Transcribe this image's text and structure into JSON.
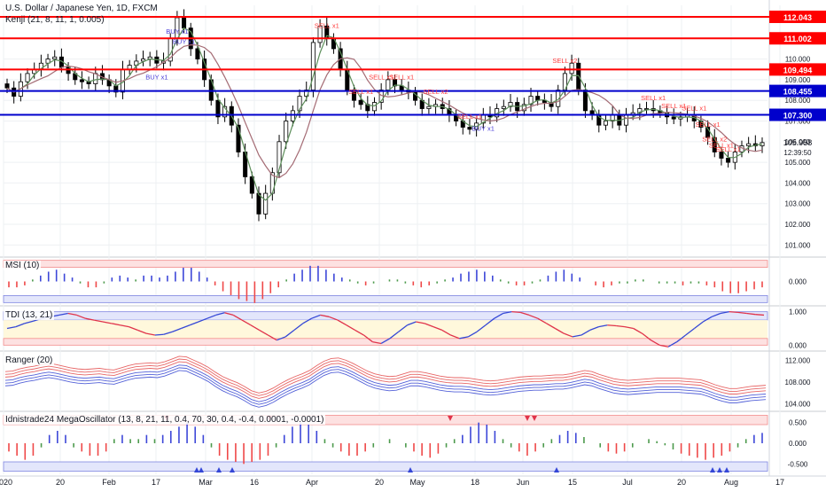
{
  "header": {
    "title": "U.S. Dollar / Japanese Yen, 1D, FXCM",
    "indicator": "Kenji (21, 8, 11, 1, 0.005)"
  },
  "colors": {
    "up_candle": "#ffffff",
    "down_candle": "#000000",
    "resistance": "#ff0000",
    "support": "#0000cc",
    "buy": "#4b3fd9",
    "sell": "#ff3d3d",
    "ma_fast": "#5d8f5a",
    "ma_slow": "#a46b74",
    "grid": "#eef0f3"
  },
  "chart_data": [
    {
      "type": "candlestick",
      "title": "U.S. Dollar / Japanese Yen, 1D, FXCM",
      "ylim": [
        100.5,
        112.6
      ],
      "y_ticks": [
        "101.000",
        "102.000",
        "103.000",
        "104.000",
        "105.000",
        "106.000",
        "107.000",
        "108.000",
        "109.000",
        "110.000",
        "111.000",
        "112.000"
      ],
      "x_ticks": [
        "2020",
        "20",
        "Feb",
        "17",
        "Mar",
        "16",
        "Apr",
        "20",
        "May",
        "18",
        "Jun",
        "15",
        "Jul",
        "20",
        "Aug",
        "17"
      ],
      "last_price": "105.958",
      "countdown": "12:39:50",
      "levels": [
        {
          "value": 112.043,
          "label": "112.043",
          "color": "#ff0000"
        },
        {
          "value": 111.002,
          "label": "111.002",
          "color": "#ff0000"
        },
        {
          "value": 109.494,
          "label": "109.494",
          "color": "#ff0000"
        },
        {
          "value": 108.455,
          "label": "108.455",
          "color": "#0000cc"
        },
        {
          "value": 107.3,
          "label": "107.300",
          "color": "#0000cc"
        }
      ],
      "series": [
        {
          "name": "close",
          "values": [
            108.6,
            108.2,
            108.9,
            109.3,
            109.5,
            109.8,
            110.0,
            110.1,
            109.6,
            109.3,
            109.0,
            108.9,
            108.8,
            109.3,
            109.0,
            108.7,
            108.4,
            109.5,
            109.7,
            109.9,
            110.0,
            110.1,
            109.8,
            109.9,
            111.0,
            112.0,
            111.5,
            110.5,
            110.0,
            109.0,
            108.0,
            107.2,
            107.7,
            106.8,
            105.5,
            104.3,
            103.5,
            102.5,
            103.5,
            104.5,
            106.0,
            107.0,
            107.5,
            108.2,
            108.5,
            110.8,
            111.6,
            111.0,
            110.5,
            109.5,
            108.5,
            108.0,
            107.8,
            107.5,
            107.9,
            108.5,
            109.0,
            108.7,
            108.5,
            108.4,
            108.0,
            107.6,
            107.7,
            107.8,
            107.6,
            107.3,
            107.0,
            106.7,
            106.6,
            106.9,
            107.3,
            107.2,
            107.6,
            107.7,
            107.9,
            107.5,
            107.8,
            108.2,
            108.0,
            107.9,
            107.7,
            108.5,
            109.3,
            109.8,
            108.5,
            107.5,
            107.3,
            106.8,
            107.0,
            107.3,
            106.8,
            107.3,
            107.4,
            107.6,
            107.6,
            107.5,
            107.4,
            107.2,
            107.1,
            107.2,
            107.3,
            107.0,
            106.7,
            106.2,
            105.5,
            105.2,
            105.0,
            105.5,
            105.8,
            105.9,
            105.8,
            105.958
          ]
        }
      ],
      "annotations": [
        "BUY x1",
        "BUY x1",
        "BUY x1",
        "SELL x1",
        "SELL x1",
        "SELL x1",
        "SELL x1",
        "SELL x2",
        "SELL x1",
        "SELL x2",
        "SELL x1",
        "SELL x1",
        "SELL x1",
        "BUY x1",
        "SELL x1",
        "SELL x1",
        "SELL x2",
        "SELL x1"
      ]
    },
    {
      "type": "bar",
      "title": "MSI (10)",
      "ylim": [
        -1.2,
        1.2
      ],
      "y_ticks": [
        "0.000"
      ],
      "values": [
        -0.3,
        -0.3,
        -0.2,
        0.1,
        0.3,
        0.5,
        0.6,
        0.4,
        0.2,
        -0.1,
        -0.3,
        -0.3,
        -0.1,
        0.2,
        0.3,
        0.2,
        0.1,
        0.3,
        0.3,
        0.2,
        0.3,
        0.5,
        0.7,
        0.7,
        0.5,
        0.2,
        -0.2,
        -0.5,
        -0.7,
        -0.9,
        -1.0,
        -1.1,
        -0.9,
        -0.6,
        -0.3,
        0.1,
        0.4,
        0.6,
        0.8,
        0.8,
        0.6,
        0.4,
        0.2,
        0.1,
        -0.1,
        -0.2,
        -0.1,
        0.0,
        0.1,
        0.1,
        -0.1,
        -0.2,
        -0.3,
        -0.2,
        -0.1,
        0.1,
        0.2,
        0.4,
        0.5,
        0.6,
        0.5,
        0.3,
        0.1,
        -0.1,
        -0.2,
        -0.2,
        -0.1,
        0.1,
        0.3,
        0.5,
        0.6,
        0.4,
        0.2,
        0.0,
        -0.2,
        -0.3,
        -0.2,
        -0.1,
        -0.1,
        0.1,
        0.1,
        0.0,
        -0.1,
        -0.1,
        -0.1,
        -0.2,
        -0.1,
        -0.1,
        -0.2,
        -0.3,
        -0.5,
        -0.6,
        -0.6,
        -0.5,
        -0.4,
        -0.3
      ]
    },
    {
      "type": "line",
      "title": "TDI (13, 21)",
      "ylim": [
        -0.15,
        1.15
      ],
      "y_ticks": [
        "1.000",
        "0.000"
      ],
      "values": [
        0.5,
        0.55,
        0.65,
        0.72,
        0.8,
        0.85,
        0.9,
        0.95,
        0.9,
        0.8,
        0.75,
        0.7,
        0.65,
        0.6,
        0.55,
        0.45,
        0.35,
        0.3,
        0.32,
        0.4,
        0.5,
        0.6,
        0.7,
        0.8,
        0.9,
        0.97,
        0.9,
        0.75,
        0.6,
        0.45,
        0.3,
        0.15,
        0.25,
        0.45,
        0.65,
        0.8,
        0.9,
        0.85,
        0.75,
        0.6,
        0.45,
        0.3,
        0.1,
        0.05,
        0.2,
        0.4,
        0.6,
        0.7,
        0.65,
        0.55,
        0.45,
        0.3,
        0.2,
        0.25,
        0.4,
        0.6,
        0.8,
        0.95,
        1.0,
        0.98,
        0.9,
        0.8,
        0.65,
        0.5,
        0.35,
        0.25,
        0.3,
        0.45,
        0.55,
        0.6,
        0.58,
        0.55,
        0.5,
        0.35,
        0.15,
        0.0,
        -0.05,
        0.1,
        0.3,
        0.5,
        0.7,
        0.85,
        0.95,
        1.0,
        0.98,
        0.95,
        0.92,
        0.9
      ]
    },
    {
      "type": "line",
      "title": "Ranger (20)",
      "ylim": [
        102.8,
        113.5
      ],
      "y_ticks": [
        "112.000",
        "108.000",
        "104.000"
      ],
      "values": [
        108.5,
        108.6,
        109.0,
        109.3,
        109.5,
        109.8,
        110.0,
        109.8,
        109.5,
        109.2,
        109.0,
        108.9,
        109.0,
        109.1,
        108.9,
        108.8,
        109.2,
        109.6,
        109.9,
        110.0,
        110.1,
        110.0,
        110.3,
        110.8,
        111.3,
        111.2,
        110.6,
        110.0,
        109.3,
        108.4,
        107.6,
        107.0,
        106.5,
        105.8,
        105.0,
        104.6,
        104.9,
        105.5,
        106.3,
        107.0,
        107.6,
        108.1,
        108.7,
        109.6,
        110.4,
        110.9,
        111.0,
        110.6,
        110.0,
        109.3,
        108.6,
        108.1,
        107.8,
        107.6,
        107.7,
        108.1,
        108.5,
        108.5,
        108.3,
        108.0,
        107.7,
        107.5,
        107.4,
        107.4,
        107.3,
        107.1,
        106.9,
        106.8,
        106.9,
        107.1,
        107.3,
        107.5,
        107.6,
        107.7,
        107.7,
        107.8,
        107.9,
        107.9,
        108.1,
        108.4,
        108.7,
        108.5,
        108.0,
        107.6,
        107.2,
        107.0,
        106.9,
        107.0,
        107.1,
        107.2,
        107.3,
        107.3,
        107.3,
        107.3,
        107.2,
        107.1,
        107.0,
        106.6,
        106.1,
        105.7,
        105.4,
        105.4,
        105.6,
        105.8,
        105.9,
        106.0
      ]
    },
    {
      "type": "bar",
      "title": "Idnistrade24 MegaOscillator (13, 8, 21, 11, 0.4, 70, 30, 0.4, -0.4, 0.0001, -0.0001)",
      "ylim": [
        -0.75,
        0.75
      ],
      "y_ticks": [
        "0.500",
        "0.000",
        "-0.500"
      ],
      "values": [
        -0.2,
        -0.3,
        -0.4,
        -0.3,
        -0.1,
        0.2,
        0.3,
        0.2,
        -0.1,
        -0.2,
        -0.3,
        -0.3,
        -0.2,
        0.1,
        0.2,
        0.1,
        0.1,
        0.2,
        0.1,
        0.2,
        0.3,
        0.4,
        0.5,
        0.4,
        0.2,
        -0.1,
        -0.3,
        -0.4,
        -0.45,
        -0.5,
        -0.45,
        -0.4,
        -0.3,
        -0.1,
        0.2,
        0.4,
        0.5,
        0.45,
        0.3,
        0.1,
        -0.1,
        -0.2,
        -0.3,
        -0.3,
        -0.2,
        -0.1,
        0.0,
        0.1,
        0.0,
        -0.1,
        -0.2,
        -0.3,
        -0.35,
        -0.25,
        -0.1,
        0.1,
        0.2,
        0.4,
        0.5,
        0.45,
        0.3,
        0.1,
        -0.1,
        -0.2,
        -0.3,
        -0.2,
        -0.1,
        0.1,
        0.2,
        0.3,
        0.25,
        0.15,
        0.0,
        -0.1,
        -0.2,
        -0.25,
        -0.2,
        -0.1,
        0.0,
        0.1,
        0.05,
        -0.05,
        -0.15,
        -0.25,
        -0.3,
        -0.35,
        -0.4,
        -0.35,
        -0.3,
        -0.2,
        -0.1,
        0.1,
        0.2,
        0.25
      ]
    }
  ]
}
